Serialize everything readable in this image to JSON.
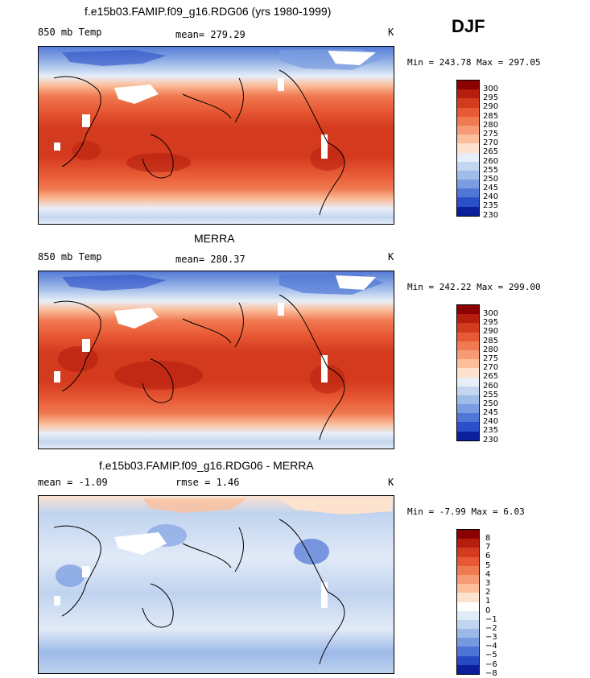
{
  "season": "DJF",
  "panels": [
    {
      "title": "f.e15b03.FAMIP.f09_g16.RDG06 (yrs 1980-1999)",
      "left": "850 mb Temp",
      "center": "mean= 279.29",
      "right": "K",
      "range": "Min = 243.78 Max = 297.05",
      "scale": [
        "300",
        "295",
        "290",
        "285",
        "280",
        "275",
        "270",
        "265",
        "260",
        "255",
        "250",
        "245",
        "240",
        "235",
        "230"
      ],
      "colors": [
        "#8b0000",
        "#b51e0e",
        "#d43a1e",
        "#e85a35",
        "#f07a52",
        "#f79b76",
        "#fbbf9c",
        "#fde2cf",
        "#e7eef8",
        "#c4d6ef",
        "#9fbbe8",
        "#7a9ce0",
        "#5077d6",
        "#2b4fc8",
        "#0b1f9c"
      ]
    },
    {
      "title": "MERRA",
      "left": "850 mb Temp",
      "center": "mean= 280.37",
      "right": "K",
      "range": "Min = 242.22 Max = 299.00",
      "scale": [
        "300",
        "295",
        "290",
        "285",
        "280",
        "275",
        "270",
        "265",
        "260",
        "255",
        "250",
        "245",
        "240",
        "235",
        "230"
      ],
      "colors": [
        "#8b0000",
        "#b51e0e",
        "#d43a1e",
        "#e85a35",
        "#f07a52",
        "#f79b76",
        "#fbbf9c",
        "#fde2cf",
        "#e7eef8",
        "#c4d6ef",
        "#9fbbe8",
        "#7a9ce0",
        "#5077d6",
        "#2b4fc8",
        "#0b1f9c"
      ]
    },
    {
      "title": "f.e15b03.FAMIP.f09_g16.RDG06 - MERRA",
      "left": "mean =   -1.09",
      "center": "rmse =    1.46",
      "right": "K",
      "range": "Min =  -7.99 Max =   6.03",
      "scale": [
        "8",
        "7",
        "6",
        "5",
        "4",
        "3",
        "2",
        "1",
        "0",
        "−1",
        "−2",
        "−3",
        "−4",
        "−5",
        "−6",
        "−8"
      ],
      "colors": [
        "#8b0000",
        "#b51e0e",
        "#d43a1e",
        "#e85a35",
        "#f07a52",
        "#f79b76",
        "#fbbf9c",
        "#fde2cf",
        "#ffffff",
        "#e1eaf7",
        "#c0d3ef",
        "#9cb9e8",
        "#7598df",
        "#4d73d4",
        "#2849c4",
        "#0b1f9c"
      ]
    }
  ]
}
